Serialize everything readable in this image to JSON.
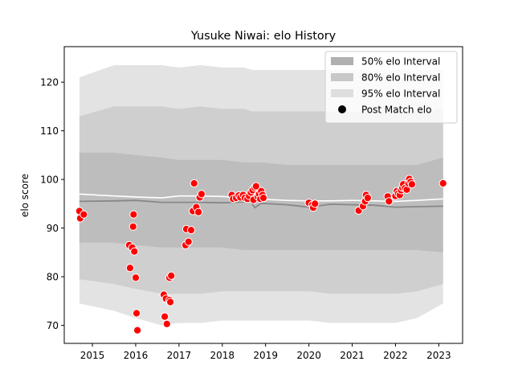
{
  "chart_data": {
    "type": "scatter",
    "title": "Yusuke Niwai: elo History",
    "xlabel": "",
    "ylabel": "elo score",
    "xlim": [
      2014.35,
      2023.55
    ],
    "ylim": [
      66.3,
      127.3
    ],
    "x_ticks": [
      2015,
      2016,
      2017,
      2018,
      2019,
      2020,
      2021,
      2022,
      2023
    ],
    "x_tick_labels": [
      "2015",
      "2016",
      "2017",
      "2018",
      "2019",
      "2020",
      "2021",
      "2022",
      "2023"
    ],
    "y_ticks": [
      70,
      80,
      90,
      100,
      110,
      120
    ],
    "y_tick_labels": [
      "70",
      "80",
      "90",
      "100",
      "110",
      "120"
    ],
    "grid": false,
    "legend_position": "top-right",
    "legend": [
      {
        "label": "50% elo Interval",
        "color": "#b0b0b0",
        "kind": "patch"
      },
      {
        "label": "80% elo Interval",
        "color": "#c8c8c8",
        "kind": "patch"
      },
      {
        "label": "95% elo Interval",
        "color": "#dedede",
        "kind": "patch"
      },
      {
        "label": "Post Match elo",
        "color": "#000000",
        "kind": "marker"
      }
    ],
    "colors": {
      "band95": "#e3e3e3",
      "band80": "#cfcfcf",
      "band50": "#bdbdbd",
      "mean_line": "#888888",
      "smooth_line": "#ffffff",
      "points": "#ff0000",
      "point_edge": "#ffffff"
    },
    "bands": {
      "x": [
        2014.7,
        2015.5,
        2016.0,
        2016.6,
        2017.0,
        2017.5,
        2018.0,
        2018.5,
        2018.7,
        2018.9,
        2019.5,
        2020.0,
        2020.5,
        2021.0,
        2021.5,
        2022.0,
        2022.5,
        2023.1
      ],
      "upper95": [
        121.0,
        123.5,
        123.5,
        123.5,
        123.0,
        123.5,
        123.0,
        123.0,
        122.5,
        122.5,
        122.5,
        122.5,
        122.5,
        122.5,
        122.5,
        122.5,
        122.5,
        122.5
      ],
      "lower95": [
        74.5,
        73.0,
        71.5,
        70.0,
        70.5,
        70.5,
        71.0,
        71.0,
        71.0,
        71.0,
        71.0,
        71.0,
        70.5,
        70.5,
        70.5,
        70.5,
        71.5,
        74.5
      ],
      "upper80": [
        113.0,
        115.0,
        115.0,
        115.0,
        114.5,
        115.0,
        114.5,
        114.5,
        114.0,
        114.0,
        114.0,
        114.0,
        114.0,
        114.0,
        114.0,
        114.0,
        114.0,
        114.5
      ],
      "lower80": [
        79.5,
        78.5,
        77.5,
        76.5,
        76.5,
        76.5,
        77.0,
        77.0,
        77.0,
        77.0,
        77.0,
        77.0,
        76.5,
        76.5,
        76.5,
        76.5,
        77.0,
        78.5
      ],
      "upper50": [
        105.5,
        105.5,
        105.0,
        104.5,
        104.0,
        104.0,
        104.0,
        103.5,
        103.5,
        103.5,
        103.0,
        103.0,
        103.0,
        103.0,
        103.0,
        103.0,
        103.0,
        104.5
      ],
      "lower50": [
        87.0,
        87.0,
        86.5,
        86.0,
        86.0,
        86.0,
        86.0,
        85.5,
        85.5,
        85.5,
        85.5,
        85.5,
        85.5,
        85.5,
        85.5,
        85.5,
        85.5,
        85.0
      ]
    },
    "mean_line": {
      "x": [
        2014.7,
        2015.5,
        2016.0,
        2016.6,
        2017.0,
        2017.5,
        2018.0,
        2018.5,
        2018.65,
        2018.75,
        2018.9,
        2019.5,
        2020.0,
        2020.5,
        2021.0,
        2021.5,
        2022.0,
        2022.5,
        2023.1
      ],
      "y": [
        95.5,
        95.6,
        95.7,
        95.3,
        95.3,
        95.3,
        95.2,
        95.4,
        95.6,
        94.2,
        95.1,
        94.8,
        94.3,
        94.9,
        94.8,
        94.7,
        94.3,
        94.4,
        94.5
      ]
    },
    "smooth_line": {
      "x": [
        2014.7,
        2015.5,
        2016.0,
        2016.6,
        2017.0,
        2017.5,
        2018.0,
        2018.5,
        2019.0,
        2019.5,
        2020.0,
        2020.5,
        2021.0,
        2021.5,
        2022.0,
        2022.5,
        2023.1
      ],
      "y": [
        97.0,
        96.6,
        96.4,
        96.2,
        96.6,
        96.6,
        96.5,
        96.2,
        95.9,
        95.7,
        95.6,
        95.6,
        95.7,
        95.6,
        95.5,
        95.7,
        96.0
      ]
    },
    "points": [
      {
        "x": 2014.7,
        "y": 93.5
      },
      {
        "x": 2014.72,
        "y": 92.0
      },
      {
        "x": 2014.8,
        "y": 92.8
      },
      {
        "x": 2015.85,
        "y": 86.5
      },
      {
        "x": 2015.87,
        "y": 81.8
      },
      {
        "x": 2015.92,
        "y": 86.0
      },
      {
        "x": 2015.94,
        "y": 90.3
      },
      {
        "x": 2015.95,
        "y": 92.8
      },
      {
        "x": 2015.97,
        "y": 85.2
      },
      {
        "x": 2016.0,
        "y": 79.8
      },
      {
        "x": 2016.02,
        "y": 72.5
      },
      {
        "x": 2016.04,
        "y": 69.0
      },
      {
        "x": 2016.65,
        "y": 76.3
      },
      {
        "x": 2016.67,
        "y": 71.8
      },
      {
        "x": 2016.7,
        "y": 75.5
      },
      {
        "x": 2016.72,
        "y": 70.3
      },
      {
        "x": 2016.78,
        "y": 75.2
      },
      {
        "x": 2016.8,
        "y": 74.8
      },
      {
        "x": 2016.78,
        "y": 79.8
      },
      {
        "x": 2016.82,
        "y": 80.2
      },
      {
        "x": 2017.15,
        "y": 86.5
      },
      {
        "x": 2017.17,
        "y": 89.8
      },
      {
        "x": 2017.22,
        "y": 87.2
      },
      {
        "x": 2017.28,
        "y": 89.6
      },
      {
        "x": 2017.32,
        "y": 93.5
      },
      {
        "x": 2017.35,
        "y": 99.2
      },
      {
        "x": 2017.4,
        "y": 94.3
      },
      {
        "x": 2017.45,
        "y": 93.3
      },
      {
        "x": 2017.48,
        "y": 96.3
      },
      {
        "x": 2017.52,
        "y": 97.0
      },
      {
        "x": 2018.22,
        "y": 96.8
      },
      {
        "x": 2018.25,
        "y": 96.0
      },
      {
        "x": 2018.32,
        "y": 96.2
      },
      {
        "x": 2018.38,
        "y": 96.7
      },
      {
        "x": 2018.42,
        "y": 96.3
      },
      {
        "x": 2018.48,
        "y": 96.8
      },
      {
        "x": 2018.52,
        "y": 96.2
      },
      {
        "x": 2018.58,
        "y": 96.0
      },
      {
        "x": 2018.62,
        "y": 96.6
      },
      {
        "x": 2018.66,
        "y": 97.3
      },
      {
        "x": 2018.7,
        "y": 97.8
      },
      {
        "x": 2018.72,
        "y": 95.8
      },
      {
        "x": 2018.75,
        "y": 98.3
      },
      {
        "x": 2018.78,
        "y": 98.6
      },
      {
        "x": 2018.82,
        "y": 96.5
      },
      {
        "x": 2018.85,
        "y": 97.0
      },
      {
        "x": 2018.88,
        "y": 96.0
      },
      {
        "x": 2018.9,
        "y": 97.6
      },
      {
        "x": 2018.93,
        "y": 96.8
      },
      {
        "x": 2018.95,
        "y": 96.2
      },
      {
        "x": 2020.0,
        "y": 95.2
      },
      {
        "x": 2020.08,
        "y": 94.8
      },
      {
        "x": 2020.1,
        "y": 94.2
      },
      {
        "x": 2020.14,
        "y": 95.0
      },
      {
        "x": 2021.15,
        "y": 93.6
      },
      {
        "x": 2021.25,
        "y": 94.5
      },
      {
        "x": 2021.3,
        "y": 95.5
      },
      {
        "x": 2021.32,
        "y": 96.8
      },
      {
        "x": 2021.36,
        "y": 96.2
      },
      {
        "x": 2021.82,
        "y": 96.5
      },
      {
        "x": 2021.85,
        "y": 95.5
      },
      {
        "x": 2022.0,
        "y": 96.6
      },
      {
        "x": 2022.03,
        "y": 97.6
      },
      {
        "x": 2022.06,
        "y": 97.1
      },
      {
        "x": 2022.1,
        "y": 96.8
      },
      {
        "x": 2022.13,
        "y": 97.8
      },
      {
        "x": 2022.16,
        "y": 98.3
      },
      {
        "x": 2022.18,
        "y": 99.0
      },
      {
        "x": 2022.22,
        "y": 98.2
      },
      {
        "x": 2022.26,
        "y": 97.9
      },
      {
        "x": 2022.3,
        "y": 99.2
      },
      {
        "x": 2022.32,
        "y": 100.1
      },
      {
        "x": 2022.35,
        "y": 99.5
      },
      {
        "x": 2022.38,
        "y": 99.0
      },
      {
        "x": 2023.1,
        "y": 99.2
      }
    ]
  }
}
